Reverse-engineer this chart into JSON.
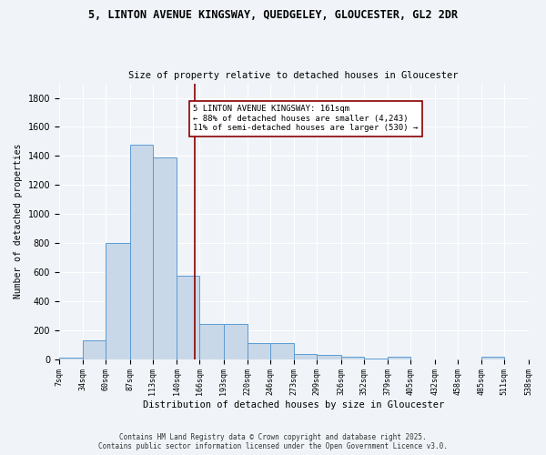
{
  "title_line1": "5, LINTON AVENUE KINGSWAY, QUEDGELEY, GLOUCESTER, GL2 2DR",
  "title_line2": "Size of property relative to detached houses in Gloucester",
  "xlabel": "Distribution of detached houses by size in Gloucester",
  "ylabel": "Number of detached properties",
  "bar_color": "#c8d8e8",
  "bar_edge_color": "#5b9bd5",
  "bins": [
    7,
    34,
    60,
    87,
    113,
    140,
    166,
    193,
    220,
    246,
    273,
    299,
    326,
    352,
    379,
    405,
    432,
    458,
    485,
    511,
    538
  ],
  "bin_labels": [
    "7sqm",
    "34sqm",
    "60sqm",
    "87sqm",
    "113sqm",
    "140sqm",
    "166sqm",
    "193sqm",
    "220sqm",
    "246sqm",
    "273sqm",
    "299sqm",
    "326sqm",
    "352sqm",
    "379sqm",
    "405sqm",
    "432sqm",
    "458sqm",
    "485sqm",
    "511sqm",
    "538sqm"
  ],
  "values": [
    10,
    130,
    800,
    1480,
    1390,
    575,
    245,
    245,
    110,
    110,
    35,
    30,
    15,
    5,
    15,
    0,
    0,
    0,
    15,
    0,
    0
  ],
  "ylim": [
    0,
    1900
  ],
  "yticks": [
    0,
    200,
    400,
    600,
    800,
    1000,
    1200,
    1400,
    1600,
    1800
  ],
  "vline_x": 161,
  "vline_color": "#8b0000",
  "annotation_text": "5 LINTON AVENUE KINGSWAY: 161sqm\n← 88% of detached houses are smaller (4,243)\n11% of semi-detached houses are larger (530) →",
  "annotation_box_color": "#ffffff",
  "annotation_border_color": "#8b0000",
  "bg_color": "#f0f4f8",
  "grid_color": "#ffffff",
  "footer_line1": "Contains HM Land Registry data © Crown copyright and database right 2025.",
  "footer_line2": "Contains public sector information licensed under the Open Government Licence v3.0."
}
